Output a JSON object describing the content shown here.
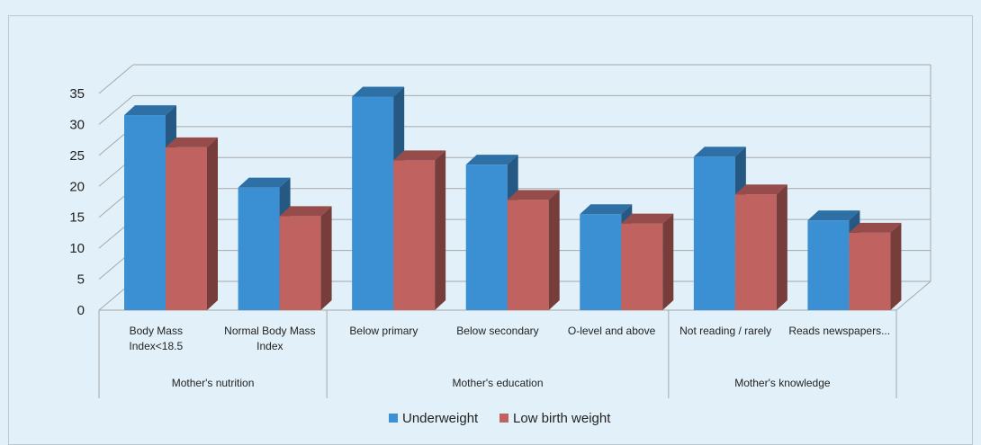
{
  "chart_data": {
    "type": "bar",
    "title": "",
    "xlabel": "",
    "ylabel": "",
    "ylim": [
      0,
      35
    ],
    "yticks": [
      "0",
      "5",
      "10",
      "15",
      "20",
      "25",
      "30",
      "35"
    ],
    "categories": [
      [
        "Body Mass",
        "Index<18.5"
      ],
      [
        "Normal Body Mass",
        "Index"
      ],
      [
        "Below primary"
      ],
      [
        "Below secondary"
      ],
      [
        "O-level and above"
      ],
      [
        "Not reading / rarely"
      ],
      [
        "Reads newspapers..."
      ]
    ],
    "groups": [
      {
        "label": "Mother's nutrition",
        "count": 2
      },
      {
        "label": "Mother's education",
        "count": 3
      },
      {
        "label": "Mother's knowledge",
        "count": 2
      }
    ],
    "series": [
      {
        "name": "Underweight",
        "color": "#3b8fd3",
        "values": [
          31.5,
          19.8,
          34.5,
          23.5,
          15.5,
          24.8,
          14.5
        ]
      },
      {
        "name": "Low birth weight",
        "color": "#c0625f",
        "values": [
          26.3,
          15.2,
          24.2,
          17.8,
          14.0,
          18.7,
          12.5
        ]
      }
    ],
    "grid": true,
    "legend_position": "bottom"
  }
}
